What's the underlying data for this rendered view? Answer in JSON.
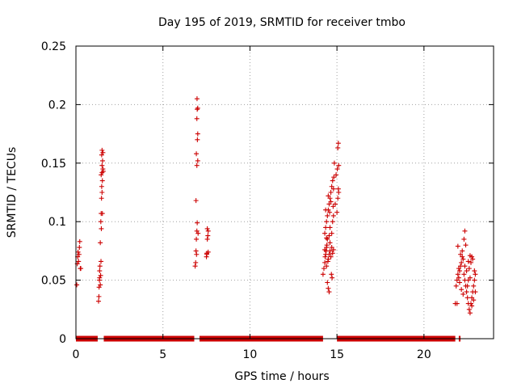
{
  "chart_data": {
    "type": "scatter",
    "title": "Day 195 of 2019, SRMTID for receiver tmbo",
    "xlabel": "GPS time / hours",
    "ylabel": "SRMTID / TECUs",
    "xlim": [
      0,
      24
    ],
    "ylim": [
      0,
      0.25
    ],
    "x_ticks": [
      0,
      5,
      10,
      15,
      20
    ],
    "x_tick_labels": [
      "0",
      "5",
      "10",
      "15",
      "20"
    ],
    "y_ticks": [
      0,
      0.05,
      0.1,
      0.15,
      0.2,
      0.25
    ],
    "y_tick_labels": [
      "0",
      "0.05",
      "0.1",
      "0.15",
      "0.2",
      "0.25"
    ],
    "grid": true,
    "legend": "none",
    "series": [
      {
        "name": "SRMTID",
        "color": "#cc0000",
        "marker": "plus",
        "points": [
          [
            0.05,
            0.046
          ],
          [
            0.08,
            0.064
          ],
          [
            0.1,
            0.07
          ],
          [
            0.12,
            0.074
          ],
          [
            0.15,
            0.066
          ],
          [
            0.2,
            0.078
          ],
          [
            0.22,
            0.083
          ],
          [
            0.25,
            0.06
          ],
          [
            0.28,
            0.06
          ],
          [
            0.18,
            0.072
          ],
          [
            1.3,
            0.032
          ],
          [
            1.32,
            0.036
          ],
          [
            1.33,
            0.044
          ],
          [
            1.35,
            0.05
          ],
          [
            1.36,
            0.058
          ],
          [
            1.38,
            0.062
          ],
          [
            1.4,
            0.046
          ],
          [
            1.42,
            0.054
          ],
          [
            1.4,
            0.082
          ],
          [
            1.43,
            0.1
          ],
          [
            1.45,
            0.107
          ],
          [
            1.47,
            0.12
          ],
          [
            1.5,
            0.125
          ],
          [
            1.48,
            0.13
          ],
          [
            1.52,
            0.135
          ],
          [
            1.45,
            0.14
          ],
          [
            1.5,
            0.142
          ],
          [
            1.55,
            0.145
          ],
          [
            1.5,
            0.148
          ],
          [
            1.53,
            0.152
          ],
          [
            1.48,
            0.157
          ],
          [
            1.5,
            0.161
          ],
          [
            1.55,
            0.159
          ],
          [
            1.57,
            0.143
          ],
          [
            1.52,
            0.107
          ],
          [
            1.46,
            0.094
          ],
          [
            1.44,
            0.066
          ],
          [
            1.36,
            0.052
          ],
          [
            6.85,
            0.062
          ],
          [
            6.88,
            0.065
          ],
          [
            6.9,
            0.075
          ],
          [
            6.92,
            0.085
          ],
          [
            6.95,
            0.092
          ],
          [
            6.97,
            0.099
          ],
          [
            6.9,
            0.118
          ],
          [
            6.95,
            0.148
          ],
          [
            7.0,
            0.152
          ],
          [
            6.92,
            0.158
          ],
          [
            6.98,
            0.17
          ],
          [
            7.0,
            0.175
          ],
          [
            6.95,
            0.188
          ],
          [
            6.97,
            0.196
          ],
          [
            7.0,
            0.197
          ],
          [
            6.96,
            0.205
          ],
          [
            7.02,
            0.09
          ],
          [
            6.93,
            0.072
          ],
          [
            7.5,
            0.07
          ],
          [
            7.52,
            0.073
          ],
          [
            7.55,
            0.085
          ],
          [
            7.58,
            0.088
          ],
          [
            7.6,
            0.092
          ],
          [
            7.55,
            0.094
          ],
          [
            7.52,
            0.072
          ],
          [
            7.6,
            0.074
          ],
          [
            14.2,
            0.055
          ],
          [
            14.25,
            0.06
          ],
          [
            14.3,
            0.065
          ],
          [
            14.32,
            0.07
          ],
          [
            14.35,
            0.072
          ],
          [
            14.38,
            0.075
          ],
          [
            14.4,
            0.078
          ],
          [
            14.42,
            0.08
          ],
          [
            14.45,
            0.085
          ],
          [
            14.3,
            0.09
          ],
          [
            14.35,
            0.095
          ],
          [
            14.4,
            0.1
          ],
          [
            14.45,
            0.105
          ],
          [
            14.5,
            0.11
          ],
          [
            14.55,
            0.115
          ],
          [
            14.6,
            0.12
          ],
          [
            14.65,
            0.125
          ],
          [
            14.7,
            0.13
          ],
          [
            14.75,
            0.135
          ],
          [
            14.8,
            0.128
          ],
          [
            14.5,
            0.068
          ],
          [
            14.55,
            0.072
          ],
          [
            14.6,
            0.075
          ],
          [
            14.65,
            0.07
          ],
          [
            14.7,
            0.078
          ],
          [
            14.45,
            0.048
          ],
          [
            14.5,
            0.043
          ],
          [
            14.55,
            0.04
          ],
          [
            14.4,
            0.062
          ],
          [
            14.6,
            0.082
          ],
          [
            14.7,
            0.09
          ],
          [
            14.75,
            0.1
          ],
          [
            14.8,
            0.105
          ],
          [
            14.6,
            0.095
          ],
          [
            14.35,
            0.11
          ],
          [
            14.5,
            0.122
          ],
          [
            14.65,
            0.117
          ],
          [
            14.75,
            0.073
          ],
          [
            14.8,
            0.076
          ],
          [
            14.68,
            0.055
          ],
          [
            14.72,
            0.052
          ],
          [
            14.3,
            0.076
          ],
          [
            14.4,
            0.086
          ],
          [
            14.58,
            0.108
          ],
          [
            14.78,
            0.113
          ],
          [
            15.0,
            0.108
          ],
          [
            15.05,
            0.12
          ],
          [
            15.1,
            0.125
          ],
          [
            15.08,
            0.128
          ],
          [
            15.02,
            0.145
          ],
          [
            15.1,
            0.148
          ],
          [
            15.05,
            0.163
          ],
          [
            15.08,
            0.167
          ],
          [
            14.85,
            0.15
          ],
          [
            14.82,
            0.138
          ],
          [
            14.9,
            0.115
          ],
          [
            14.95,
            0.14
          ],
          [
            14.55,
            0.088
          ],
          [
            14.48,
            0.066
          ],
          [
            21.8,
            0.03
          ],
          [
            21.85,
            0.045
          ],
          [
            21.9,
            0.05
          ],
          [
            21.95,
            0.055
          ],
          [
            22.0,
            0.06
          ],
          [
            22.05,
            0.058
          ],
          [
            22.1,
            0.062
          ],
          [
            22.15,
            0.065
          ],
          [
            22.2,
            0.07
          ],
          [
            22.25,
            0.068
          ],
          [
            22.3,
            0.055
          ],
          [
            22.35,
            0.05
          ],
          [
            22.4,
            0.045
          ],
          [
            22.45,
            0.04
          ],
          [
            22.5,
            0.035
          ],
          [
            22.55,
            0.03
          ],
          [
            22.6,
            0.025
          ],
          [
            22.65,
            0.022
          ],
          [
            22.7,
            0.03
          ],
          [
            22.75,
            0.035
          ],
          [
            22.8,
            0.04
          ],
          [
            22.85,
            0.045
          ],
          [
            22.9,
            0.05
          ],
          [
            22.95,
            0.055
          ],
          [
            22.6,
            0.06
          ],
          [
            22.7,
            0.065
          ],
          [
            22.75,
            0.07
          ],
          [
            22.8,
            0.068
          ],
          [
            22.4,
            0.08
          ],
          [
            22.3,
            0.085
          ],
          [
            22.35,
            0.092
          ],
          [
            22.2,
            0.075
          ],
          [
            22.1,
            0.072
          ],
          [
            21.95,
            0.079
          ],
          [
            22.05,
            0.048
          ],
          [
            22.15,
            0.042
          ],
          [
            22.25,
            0.038
          ],
          [
            22.5,
            0.045
          ],
          [
            22.55,
            0.05
          ],
          [
            22.65,
            0.052
          ],
          [
            22.9,
            0.058
          ],
          [
            22.95,
            0.04
          ],
          [
            22.85,
            0.033
          ],
          [
            22.75,
            0.028
          ],
          [
            22.45,
            0.058
          ],
          [
            22.35,
            0.062
          ],
          [
            22.55,
            0.066
          ],
          [
            22.65,
            0.071
          ],
          [
            21.9,
            0.03
          ],
          [
            22.0,
            0.052
          ]
        ],
        "zero_segments": [
          [
            0.0,
            1.25
          ],
          [
            1.6,
            6.8
          ],
          [
            7.1,
            14.2
          ],
          [
            15.0,
            21.8
          ],
          [
            22.0,
            22.1
          ]
        ]
      }
    ]
  }
}
